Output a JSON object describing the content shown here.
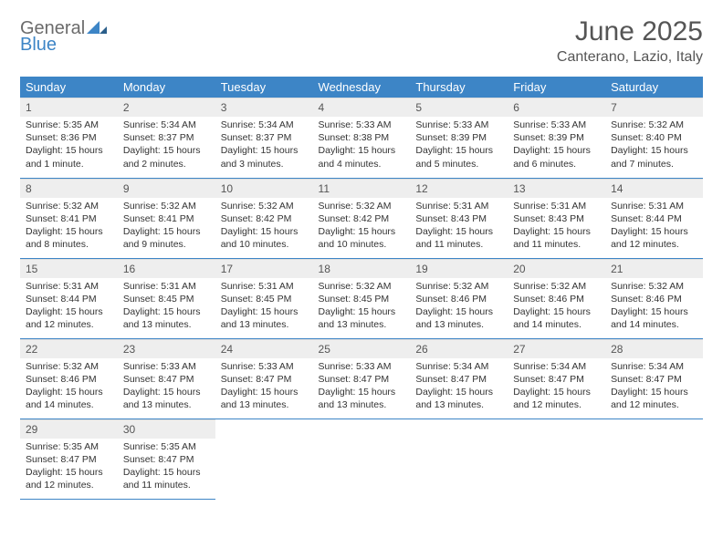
{
  "logo": {
    "text1": "General",
    "text2": "Blue"
  },
  "title": "June 2025",
  "location": "Canterano, Lazio, Italy",
  "colors": {
    "header_bg": "#3d85c6",
    "header_text": "#ffffff",
    "daynum_bg": "#eeeeee",
    "text": "#333333",
    "title_text": "#555555",
    "row_border": "#3d85c6"
  },
  "typography": {
    "title_fontsize": 30,
    "location_fontsize": 16,
    "header_fontsize": 13,
    "daynum_fontsize": 12,
    "body_fontsize": 10.5
  },
  "weekdays": [
    "Sunday",
    "Monday",
    "Tuesday",
    "Wednesday",
    "Thursday",
    "Friday",
    "Saturday"
  ],
  "days": [
    {
      "n": 1,
      "sunrise": "5:35 AM",
      "sunset": "8:36 PM",
      "daylight": "15 hours and 1 minute."
    },
    {
      "n": 2,
      "sunrise": "5:34 AM",
      "sunset": "8:37 PM",
      "daylight": "15 hours and 2 minutes."
    },
    {
      "n": 3,
      "sunrise": "5:34 AM",
      "sunset": "8:37 PM",
      "daylight": "15 hours and 3 minutes."
    },
    {
      "n": 4,
      "sunrise": "5:33 AM",
      "sunset": "8:38 PM",
      "daylight": "15 hours and 4 minutes."
    },
    {
      "n": 5,
      "sunrise": "5:33 AM",
      "sunset": "8:39 PM",
      "daylight": "15 hours and 5 minutes."
    },
    {
      "n": 6,
      "sunrise": "5:33 AM",
      "sunset": "8:39 PM",
      "daylight": "15 hours and 6 minutes."
    },
    {
      "n": 7,
      "sunrise": "5:32 AM",
      "sunset": "8:40 PM",
      "daylight": "15 hours and 7 minutes."
    },
    {
      "n": 8,
      "sunrise": "5:32 AM",
      "sunset": "8:41 PM",
      "daylight": "15 hours and 8 minutes."
    },
    {
      "n": 9,
      "sunrise": "5:32 AM",
      "sunset": "8:41 PM",
      "daylight": "15 hours and 9 minutes."
    },
    {
      "n": 10,
      "sunrise": "5:32 AM",
      "sunset": "8:42 PM",
      "daylight": "15 hours and 10 minutes."
    },
    {
      "n": 11,
      "sunrise": "5:32 AM",
      "sunset": "8:42 PM",
      "daylight": "15 hours and 10 minutes."
    },
    {
      "n": 12,
      "sunrise": "5:31 AM",
      "sunset": "8:43 PM",
      "daylight": "15 hours and 11 minutes."
    },
    {
      "n": 13,
      "sunrise": "5:31 AM",
      "sunset": "8:43 PM",
      "daylight": "15 hours and 11 minutes."
    },
    {
      "n": 14,
      "sunrise": "5:31 AM",
      "sunset": "8:44 PM",
      "daylight": "15 hours and 12 minutes."
    },
    {
      "n": 15,
      "sunrise": "5:31 AM",
      "sunset": "8:44 PM",
      "daylight": "15 hours and 12 minutes."
    },
    {
      "n": 16,
      "sunrise": "5:31 AM",
      "sunset": "8:45 PM",
      "daylight": "15 hours and 13 minutes."
    },
    {
      "n": 17,
      "sunrise": "5:31 AM",
      "sunset": "8:45 PM",
      "daylight": "15 hours and 13 minutes."
    },
    {
      "n": 18,
      "sunrise": "5:32 AM",
      "sunset": "8:45 PM",
      "daylight": "15 hours and 13 minutes."
    },
    {
      "n": 19,
      "sunrise": "5:32 AM",
      "sunset": "8:46 PM",
      "daylight": "15 hours and 13 minutes."
    },
    {
      "n": 20,
      "sunrise": "5:32 AM",
      "sunset": "8:46 PM",
      "daylight": "15 hours and 14 minutes."
    },
    {
      "n": 21,
      "sunrise": "5:32 AM",
      "sunset": "8:46 PM",
      "daylight": "15 hours and 14 minutes."
    },
    {
      "n": 22,
      "sunrise": "5:32 AM",
      "sunset": "8:46 PM",
      "daylight": "15 hours and 14 minutes."
    },
    {
      "n": 23,
      "sunrise": "5:33 AM",
      "sunset": "8:47 PM",
      "daylight": "15 hours and 13 minutes."
    },
    {
      "n": 24,
      "sunrise": "5:33 AM",
      "sunset": "8:47 PM",
      "daylight": "15 hours and 13 minutes."
    },
    {
      "n": 25,
      "sunrise": "5:33 AM",
      "sunset": "8:47 PM",
      "daylight": "15 hours and 13 minutes."
    },
    {
      "n": 26,
      "sunrise": "5:34 AM",
      "sunset": "8:47 PM",
      "daylight": "15 hours and 13 minutes."
    },
    {
      "n": 27,
      "sunrise": "5:34 AM",
      "sunset": "8:47 PM",
      "daylight": "15 hours and 12 minutes."
    },
    {
      "n": 28,
      "sunrise": "5:34 AM",
      "sunset": "8:47 PM",
      "daylight": "15 hours and 12 minutes."
    },
    {
      "n": 29,
      "sunrise": "5:35 AM",
      "sunset": "8:47 PM",
      "daylight": "15 hours and 12 minutes."
    },
    {
      "n": 30,
      "sunrise": "5:35 AM",
      "sunset": "8:47 PM",
      "daylight": "15 hours and 11 minutes."
    }
  ],
  "labels": {
    "sunrise": "Sunrise:",
    "sunset": "Sunset:",
    "daylight": "Daylight:"
  },
  "layout": {
    "start_weekday": 0,
    "total_cells": 35
  }
}
